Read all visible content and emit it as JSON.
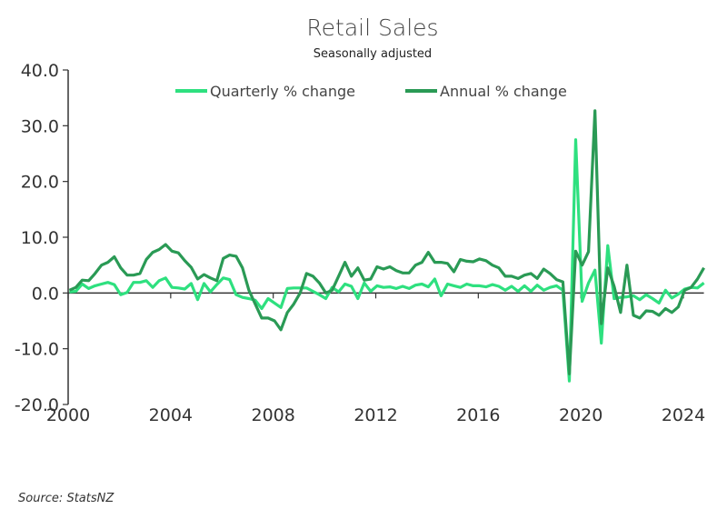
{
  "chart_data": {
    "type": "line",
    "title": "Retail Sales",
    "subtitle": "Seasonally adjusted",
    "source": "Source: StatsNZ",
    "xlabel": "",
    "ylabel": "",
    "x_start": "2000 Q1",
    "frequency": "quarterly",
    "xlim": [
      2000,
      2025
    ],
    "ylim": [
      -20,
      40
    ],
    "x_ticks": [
      "2000",
      "2004",
      "2008",
      "2012",
      "2016",
      "2020",
      "2024"
    ],
    "y_ticks": [
      "-20.0",
      "-10.0",
      "0.0",
      "10.0",
      "20.0",
      "30.0",
      "40.0"
    ],
    "grid": false,
    "legend": "top",
    "series": [
      {
        "name": "Quarterly % change",
        "color": "#2ee07f",
        "values": [
          0.2,
          0.3,
          1.6,
          0.8,
          1.3,
          1.6,
          1.9,
          1.5,
          -0.3,
          0.1,
          1.9,
          1.9,
          2.2,
          1,
          2.2,
          2.7,
          1,
          0.9,
          0.7,
          1.7,
          -1.2,
          1.7,
          0.2,
          1.5,
          2.7,
          2.4,
          -0.3,
          -0.8,
          -1,
          -1.3,
          -2.8,
          -1,
          -1.8,
          -2.6,
          0.8,
          0.9,
          0.9,
          0.9,
          0.3,
          -0.3,
          -1,
          1,
          0.2,
          1.6,
          1.2,
          -1,
          1.8,
          0.3,
          1.3,
          1,
          1.1,
          0.8,
          1.2,
          0.8,
          1.4,
          1.6,
          1.1,
          2.5,
          -0.5,
          1.6,
          1.3,
          1,
          1.6,
          1.3,
          1.3,
          1.1,
          1.5,
          1.2,
          0.5,
          1.2,
          0.3,
          1.3,
          0.3,
          1.4,
          0.5,
          1,
          1.3,
          0.5,
          -15.8,
          27.5,
          -1.5,
          1.8,
          4.1,
          -9,
          8.5,
          -1,
          -0.8,
          -0.7,
          -0.5,
          -1.2,
          -0.3,
          -1,
          -1.8,
          0.5,
          -0.9,
          -0.2,
          0.7,
          1,
          0.9,
          1.8
        ]
      },
      {
        "name": "Annual % change",
        "color": "#2a9a55",
        "values": [
          0.5,
          1,
          2.3,
          2.2,
          3.5,
          5,
          5.5,
          6.5,
          4.5,
          3.2,
          3.2,
          3.5,
          6,
          7.3,
          7.8,
          8.7,
          7.5,
          7.2,
          5.8,
          4.6,
          2.5,
          3.3,
          2.7,
          2.2,
          6.2,
          6.8,
          6.6,
          4.5,
          0.5,
          -2,
          -4.5,
          -4.5,
          -5,
          -6.6,
          -3.5,
          -2,
          0,
          3.5,
          3,
          1.8,
          0,
          0.5,
          3,
          5.5,
          3,
          4.5,
          2.3,
          2.5,
          4.7,
          4.3,
          4.7,
          4,
          3.6,
          3.6,
          5,
          5.5,
          7.3,
          5.5,
          5.5,
          5.3,
          3.8,
          6,
          5.7,
          5.6,
          6.1,
          5.8,
          5,
          4.5,
          3,
          3,
          2.6,
          3.2,
          3.5,
          2.6,
          4.3,
          3.5,
          2.4,
          2,
          -14.5,
          7.5,
          5,
          7.4,
          32.7,
          -5.5,
          4.5,
          1.2,
          -3.5,
          5,
          -4,
          -4.5,
          -3.2,
          -3.3,
          -4,
          -2.8,
          -3.5,
          -2.5,
          0.5,
          1,
          2.5,
          4.5
        ]
      }
    ]
  }
}
